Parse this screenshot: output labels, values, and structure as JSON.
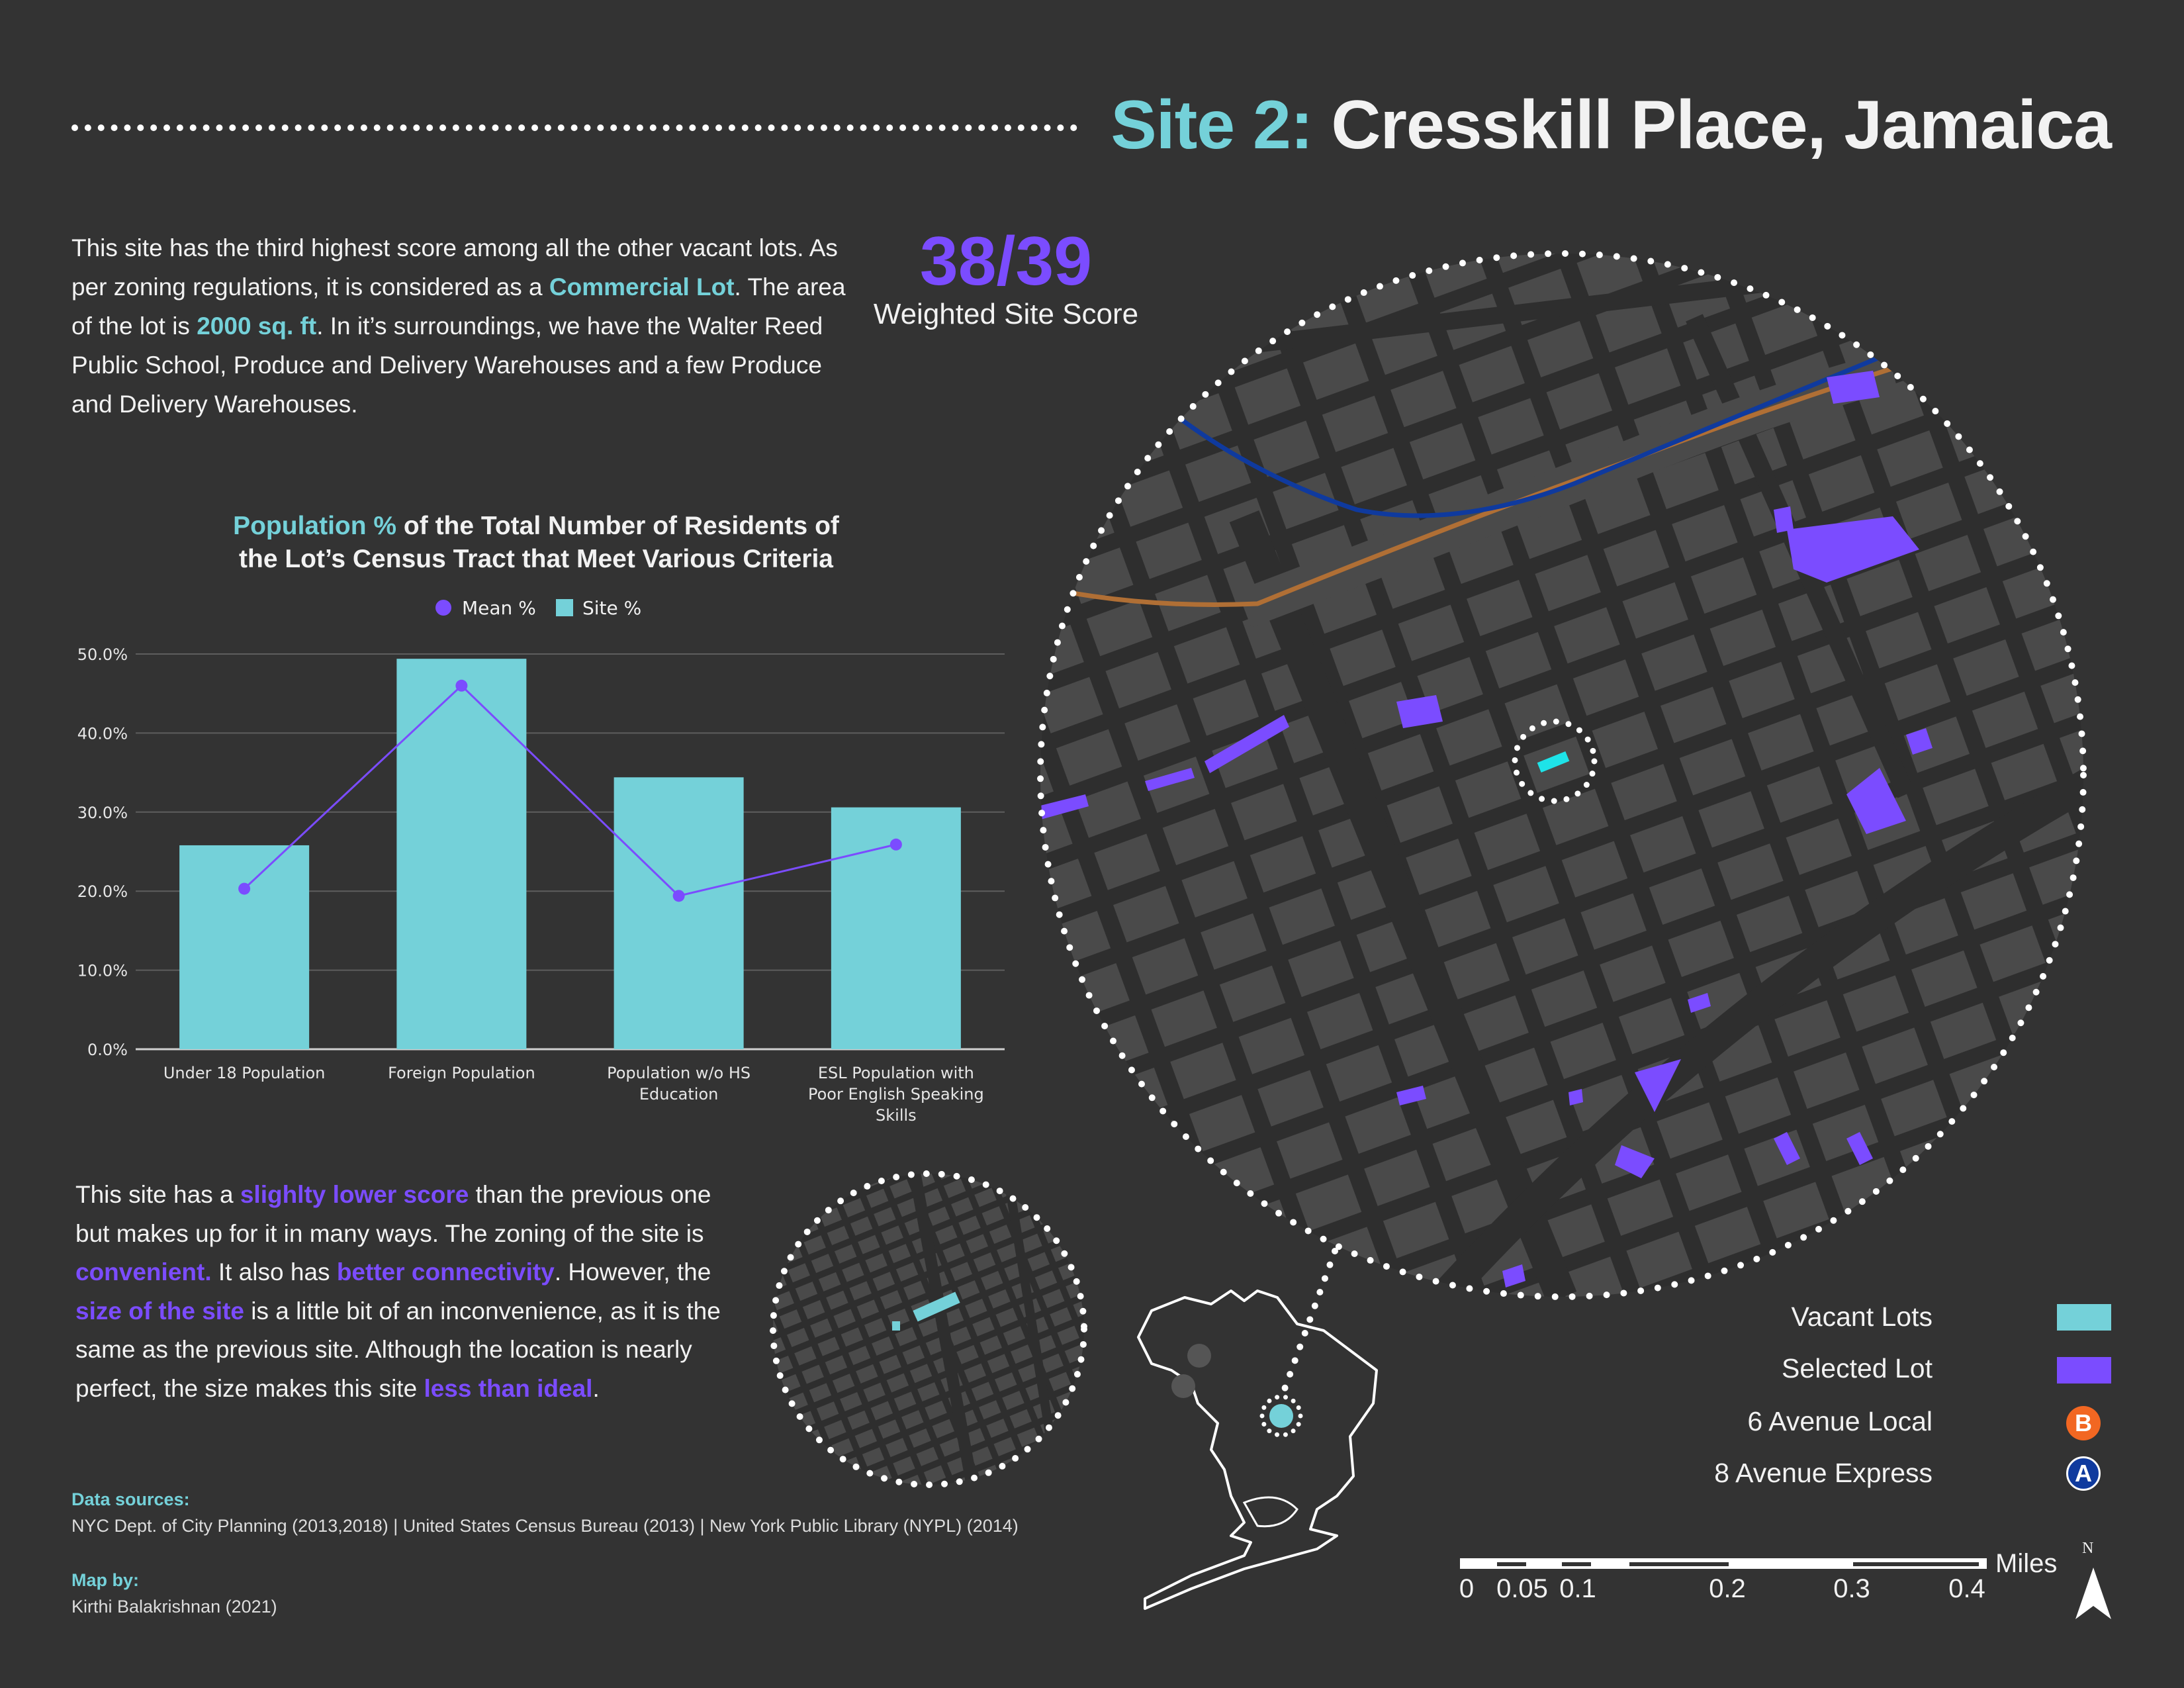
{
  "header": {
    "site_label": "Site 2:",
    "site_name": "Cresskill Place, Jamaica"
  },
  "intro": {
    "t1": "This site has the third highest score among all the other vacant lots. As per zoning regulations, it is considered as a ",
    "h1": "Commercial Lot",
    "t2": ". The area of the lot is ",
    "h2": "2000 sq. ft",
    "t3": ". In it’s surroundings, we have the Walter Reed Public School, Produce and Delivery Warehouses and a few Produce and Delivery Warehouses."
  },
  "score": {
    "value": "38/39",
    "label": "Weighted Site Score"
  },
  "chart_title": {
    "highlight": "Population %",
    "rest_line1": " of the Total Number of Residents of",
    "line2": "the Lot’s Census Tract that Meet Various Criteria"
  },
  "chart_data": {
    "type": "bar",
    "legend_position": "top",
    "grid": true,
    "ylim": [
      0,
      50
    ],
    "y_ticks": [
      "0.0%",
      "10.0%",
      "20.0%",
      "30.0%",
      "40.0%",
      "50.0%"
    ],
    "categories": [
      [
        "Under 18 Population"
      ],
      [
        "Foreign Population"
      ],
      [
        "Population w/o HS",
        "Education"
      ],
      [
        "ESL Population with",
        "Poor English Speaking",
        "Skills"
      ]
    ],
    "series": [
      {
        "name": "Mean %",
        "kind": "line",
        "color": "#7b4cff",
        "values": [
          20.3,
          46.0,
          19.4,
          25.9
        ]
      },
      {
        "name": "Site %",
        "kind": "bar",
        "color": "#74d1d9",
        "values": [
          25.8,
          49.4,
          34.4,
          30.6
        ]
      }
    ]
  },
  "outro": {
    "t1": "This site has a ",
    "h1": "slighlty lower score",
    "t2": " than the previous one but makes up for it in many ways. The zoning of the site is ",
    "h2": "convenient.",
    "t3": " It also has ",
    "h3": "better connectivity",
    "t4": ".  However, the ",
    "h4": "size of the site",
    "t5": " is a little bit of an inconvenience, as it is the same as the previous site. Although the location is nearly perfect, the size makes this site ",
    "h5": "less than ideal",
    "t6": "."
  },
  "sources": {
    "label": "Data sources:",
    "text": "NYC Dept. of City Planning (2013,2018) | United States Census Bureau (2013) | New York Public Library (NYPL) (2014)"
  },
  "credit": {
    "label": "Map by:",
    "text": "Kirthi Balakrishnan (2021)"
  },
  "legend": {
    "items": [
      {
        "label": "Vacant Lots",
        "color": "#74d1d9"
      },
      {
        "label": "Selected Lot",
        "color": "#7b4cff"
      },
      {
        "label": "6 Avenue Local",
        "color": "#f26722",
        "letter": "B"
      },
      {
        "label": "8 Avenue Express",
        "color": "#0f3a9e",
        "letter": "A"
      }
    ]
  },
  "scale": {
    "ticks": [
      "0",
      "0.05",
      "0.1",
      "0.2",
      "0.3",
      "0.4"
    ],
    "unit": "Miles"
  },
  "north": {
    "label": "N"
  },
  "colors": {
    "background": "#333333",
    "teal": "#74d1d9",
    "purple": "#7b4cff",
    "map_block": "#4a4a4a",
    "map_road": "#2e2e2e"
  }
}
